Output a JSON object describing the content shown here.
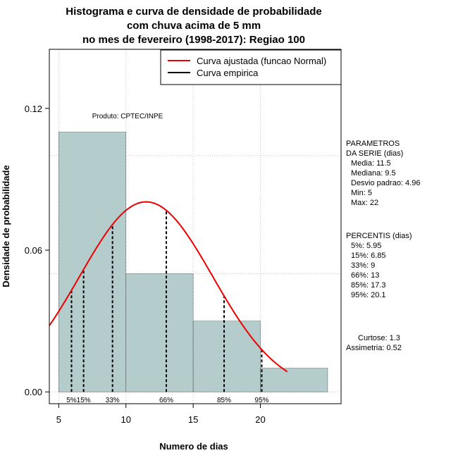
{
  "chart_data": {
    "type": "bar",
    "title_lines": [
      "Histograma e curva de densidade de probabilidade",
      "com chuva acima de 5 mm",
      "no mes de fevereiro (1998-2017): Regiao 100"
    ],
    "xlabel": "Numero de dias",
    "ylabel": "Densidade de probabilidade",
    "xlim": [
      4.3,
      26.0
    ],
    "ylim": [
      -0.005,
      0.145
    ],
    "x_ticks": [
      5,
      10,
      15,
      20
    ],
    "y_ticks": [
      0.0,
      0.06,
      0.12
    ],
    "y_tick_labels": [
      "0.00",
      "0.06",
      "0.12"
    ],
    "grid_x": [
      5,
      10,
      15,
      20
    ],
    "grid_y": [
      0.0,
      0.05,
      0.1
    ],
    "bins": [
      {
        "start": 5,
        "end": 10,
        "density": 0.11
      },
      {
        "start": 10,
        "end": 15,
        "density": 0.05
      },
      {
        "start": 15,
        "end": 20,
        "density": 0.03
      },
      {
        "start": 20,
        "end": 25,
        "density": 0.01
      }
    ],
    "bar_color": "#b5cccc",
    "normal_curve": {
      "mean": 11.5,
      "sd": 4.96,
      "x_start": 4.3,
      "x_end": 22,
      "color": "#ee0000"
    },
    "percentile_lines": [
      {
        "label": "5%",
        "x": 5.95
      },
      {
        "label": "15%",
        "x": 6.85
      },
      {
        "label": "33%",
        "x": 9
      },
      {
        "label": "66%",
        "x": 13
      },
      {
        "label": "85%",
        "x": 17.3
      },
      {
        "label": "95%",
        "x": 20.1
      }
    ],
    "legend": {
      "placement": "top-right",
      "items": [
        {
          "label": "Curva ajustada (funcao Normal)",
          "color": "#ee0000"
        },
        {
          "label": "Curva empirica",
          "color": "#000000"
        }
      ]
    },
    "annotation": "Produto: CPTEC/INPE"
  },
  "side_panel": {
    "params_header": [
      "PARAMETROS",
      "DA SERIE (dias)"
    ],
    "params": [
      "Media: 11.5",
      "Mediana: 9.5",
      "Desvio padrao: 4.96",
      "Min: 5",
      "Max: 22"
    ],
    "percentis_header": "PERCENTIS (dias)",
    "percentis": [
      "5%: 5.95",
      "15%: 6.85",
      "33%: 9",
      "66%: 13",
      "85%: 17.3",
      "95%: 20.1"
    ],
    "curtose": "Curtose: 1.3",
    "assimetria": "Assimetria: 0.52"
  }
}
